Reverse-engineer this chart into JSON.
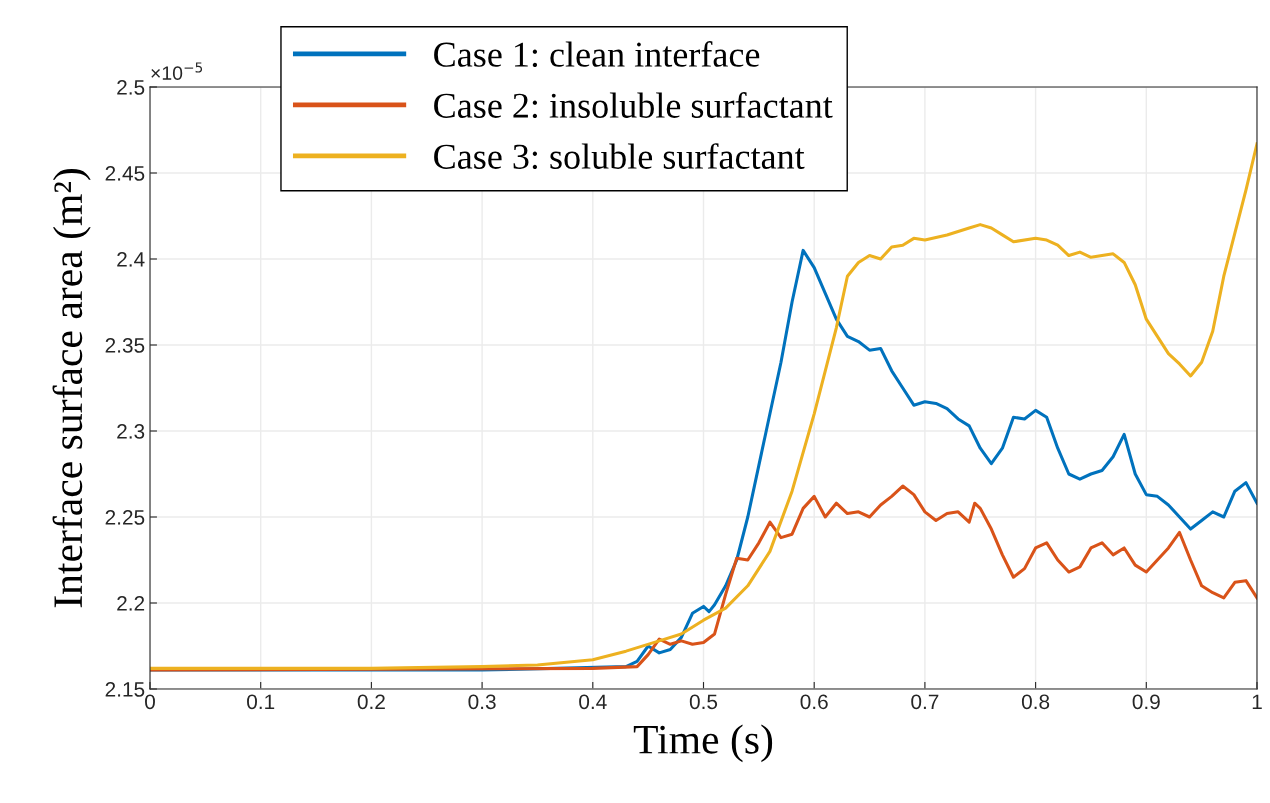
{
  "chart_data": {
    "type": "line",
    "xlabel": "Time (s)",
    "ylabel": "Interface surface area (m²)",
    "annotations": [
      "×10$^{−5}$"
    ],
    "xlim": [
      0,
      1
    ],
    "xticks": [
      0,
      0.1,
      0.2,
      0.3,
      0.4,
      0.5,
      0.6,
      0.7,
      0.8,
      0.9,
      1
    ],
    "ylim": [
      2.15,
      2.5
    ],
    "yticks": [
      2.15,
      2.2,
      2.25,
      2.3,
      2.35,
      2.4,
      2.45,
      2.5
    ],
    "grid": true,
    "legend": "top left",
    "marker": "none",
    "line_style": "solid",
    "series": [
      {
        "name": "Case 1: clean interface",
        "color": "#0072bd",
        "x": [
          0,
          0.3,
          0.43,
          0.44,
          0.45,
          0.46,
          0.47,
          0.48,
          0.49,
          0.5,
          0.505,
          0.51,
          0.52,
          0.53,
          0.54,
          0.55,
          0.56,
          0.57,
          0.58,
          0.585,
          0.59,
          0.6,
          0.61,
          0.62,
          0.63,
          0.64,
          0.65,
          0.66,
          0.67,
          0.68,
          0.69,
          0.7,
          0.71,
          0.72,
          0.73,
          0.74,
          0.75,
          0.76,
          0.77,
          0.78,
          0.79,
          0.8,
          0.81,
          0.82,
          0.83,
          0.84,
          0.85,
          0.86,
          0.87,
          0.88,
          0.89,
          0.9,
          0.91,
          0.92,
          0.93,
          0.94,
          0.95,
          0.96,
          0.97,
          0.98,
          0.99,
          1.0
        ],
        "values": [
          2.161,
          2.161,
          2.163,
          2.166,
          2.175,
          2.171,
          2.173,
          2.18,
          2.194,
          2.198,
          2.195,
          2.199,
          2.21,
          2.225,
          2.25,
          2.28,
          2.31,
          2.34,
          2.375,
          2.39,
          2.405,
          2.395,
          2.38,
          2.365,
          2.355,
          2.352,
          2.347,
          2.348,
          2.335,
          2.325,
          2.315,
          2.317,
          2.316,
          2.313,
          2.307,
          2.303,
          2.29,
          2.281,
          2.29,
          2.308,
          2.307,
          2.312,
          2.308,
          2.29,
          2.275,
          2.272,
          2.275,
          2.277,
          2.285,
          2.298,
          2.275,
          2.263,
          2.262,
          2.257,
          2.25,
          2.243,
          2.248,
          2.253,
          2.25,
          2.265,
          2.27,
          2.258
        ]
      },
      {
        "name": "Case 2: insoluble surfactant",
        "color": "#d95319",
        "x": [
          0,
          0.4,
          0.44,
          0.45,
          0.46,
          0.47,
          0.48,
          0.49,
          0.5,
          0.51,
          0.52,
          0.53,
          0.54,
          0.55,
          0.56,
          0.57,
          0.58,
          0.59,
          0.6,
          0.61,
          0.62,
          0.63,
          0.64,
          0.65,
          0.66,
          0.67,
          0.68,
          0.69,
          0.7,
          0.71,
          0.72,
          0.73,
          0.74,
          0.745,
          0.75,
          0.76,
          0.77,
          0.78,
          0.79,
          0.8,
          0.81,
          0.82,
          0.83,
          0.84,
          0.85,
          0.86,
          0.87,
          0.88,
          0.89,
          0.9,
          0.91,
          0.92,
          0.93,
          0.94,
          0.95,
          0.96,
          0.97,
          0.98,
          0.99,
          1.0
        ],
        "values": [
          2.161,
          2.162,
          2.163,
          2.17,
          2.179,
          2.176,
          2.178,
          2.176,
          2.177,
          2.182,
          2.205,
          2.226,
          2.225,
          2.235,
          2.247,
          2.238,
          2.24,
          2.255,
          2.262,
          2.25,
          2.258,
          2.252,
          2.253,
          2.25,
          2.257,
          2.262,
          2.268,
          2.263,
          2.253,
          2.248,
          2.252,
          2.253,
          2.247,
          2.258,
          2.255,
          2.243,
          2.228,
          2.215,
          2.22,
          2.232,
          2.235,
          2.225,
          2.218,
          2.221,
          2.232,
          2.235,
          2.228,
          2.232,
          2.222,
          2.218,
          2.225,
          2.232,
          2.241,
          2.225,
          2.21,
          2.206,
          2.203,
          2.212,
          2.213,
          2.203
        ]
      },
      {
        "name": "Case 3: soluble surfactant",
        "color": "#edb120",
        "x": [
          0,
          0.2,
          0.3,
          0.35,
          0.4,
          0.43,
          0.46,
          0.48,
          0.5,
          0.52,
          0.54,
          0.56,
          0.58,
          0.6,
          0.62,
          0.63,
          0.64,
          0.65,
          0.66,
          0.67,
          0.68,
          0.69,
          0.7,
          0.72,
          0.74,
          0.75,
          0.76,
          0.77,
          0.78,
          0.8,
          0.81,
          0.82,
          0.83,
          0.84,
          0.85,
          0.87,
          0.88,
          0.89,
          0.9,
          0.91,
          0.92,
          0.93,
          0.94,
          0.95,
          0.96,
          0.97,
          0.98,
          0.99,
          1.0
        ],
        "values": [
          2.162,
          2.162,
          2.163,
          2.164,
          2.167,
          2.172,
          2.178,
          2.182,
          2.19,
          2.197,
          2.21,
          2.23,
          2.265,
          2.31,
          2.36,
          2.39,
          2.398,
          2.402,
          2.4,
          2.407,
          2.408,
          2.412,
          2.411,
          2.414,
          2.418,
          2.42,
          2.418,
          2.414,
          2.41,
          2.412,
          2.411,
          2.408,
          2.402,
          2.404,
          2.401,
          2.403,
          2.398,
          2.385,
          2.365,
          2.355,
          2.345,
          2.339,
          2.332,
          2.34,
          2.358,
          2.39,
          2.415,
          2.44,
          2.467
        ]
      }
    ]
  }
}
